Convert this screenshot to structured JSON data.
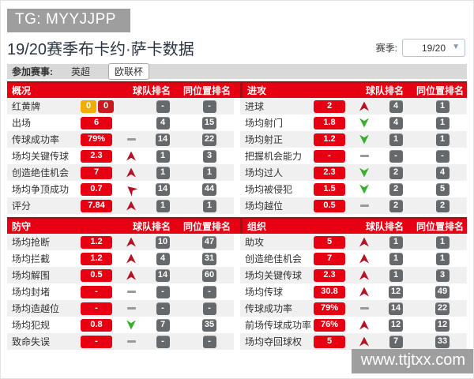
{
  "badge_text": "TG: MYYJJPP",
  "header": {
    "title": "19/20赛季布卡约·萨卡数据",
    "season_label": "赛季:",
    "season_value": "19/20"
  },
  "tabs": {
    "label": "参加赛事:",
    "items": [
      {
        "label": "英超",
        "active": false
      },
      {
        "label": "欧联杯",
        "active": true
      }
    ]
  },
  "columns": {
    "team_rank": "球队排名",
    "pos_rank": "同位置排名"
  },
  "panels": [
    {
      "title": "概况",
      "rows": [
        {
          "label": "红黄牌",
          "cards": {
            "yellow": "0",
            "red": "0"
          },
          "trend": "none",
          "team": "-",
          "pos": "-"
        },
        {
          "label": "出场",
          "value": "6",
          "trend": "none",
          "team": "4",
          "pos": "15"
        },
        {
          "label": "传球成功率",
          "value": "79%",
          "trend": "flat",
          "team": "14",
          "pos": "22"
        },
        {
          "label": "场均关键传球",
          "value": "2.3",
          "trend": "up",
          "team": "1",
          "pos": "3"
        },
        {
          "label": "创造绝佳机会",
          "value": "7",
          "trend": "up",
          "team": "1",
          "pos": "1"
        },
        {
          "label": "场均争顶成功",
          "value": "0.7",
          "trend": "upleft",
          "team": "14",
          "pos": "44"
        },
        {
          "label": "评分",
          "value": "7.84",
          "trend": "up",
          "team": "1",
          "pos": "1"
        }
      ]
    },
    {
      "title": "进攻",
      "rows": [
        {
          "label": "进球",
          "value": "2",
          "trend": "up",
          "team": "4",
          "pos": "1"
        },
        {
          "label": "场均射门",
          "value": "1.8",
          "trend": "down",
          "team": "4",
          "pos": "1"
        },
        {
          "label": "场均射正",
          "value": "1.2",
          "trend": "down",
          "team": "1",
          "pos": "1"
        },
        {
          "label": "把握机会能力",
          "value": "-",
          "trend": "flat",
          "team": "-",
          "pos": "-"
        },
        {
          "label": "场均过人",
          "value": "2.3",
          "trend": "down",
          "team": "2",
          "pos": "4"
        },
        {
          "label": "场均被侵犯",
          "value": "1.5",
          "trend": "down",
          "team": "2",
          "pos": "5"
        },
        {
          "label": "场均越位",
          "value": "0.5",
          "trend": "flat",
          "team": "2",
          "pos": "2"
        }
      ]
    },
    {
      "title": "防守",
      "rows": [
        {
          "label": "场均抢断",
          "value": "1.2",
          "trend": "up",
          "team": "10",
          "pos": "47"
        },
        {
          "label": "场均拦截",
          "value": "1.2",
          "trend": "up",
          "team": "4",
          "pos": "31"
        },
        {
          "label": "场均解围",
          "value": "0.5",
          "trend": "up",
          "team": "14",
          "pos": "60"
        },
        {
          "label": "场均封堵",
          "value": "-",
          "trend": "flat",
          "team": "-",
          "pos": "-"
        },
        {
          "label": "场均造越位",
          "value": "-",
          "trend": "flat",
          "team": "-",
          "pos": "-"
        },
        {
          "label": "场均犯规",
          "value": "0.8",
          "trend": "down",
          "team": "7",
          "pos": "35"
        },
        {
          "label": "致命失误",
          "value": "-",
          "trend": "flat",
          "team": "-",
          "pos": "-"
        }
      ]
    },
    {
      "title": "组织",
      "rows": [
        {
          "label": "助攻",
          "value": "5",
          "trend": "up",
          "team": "1",
          "pos": "1"
        },
        {
          "label": "创造绝佳机会",
          "value": "7",
          "trend": "up",
          "team": "1",
          "pos": "1"
        },
        {
          "label": "场均关键传球",
          "value": "2.3",
          "trend": "up",
          "team": "1",
          "pos": "3"
        },
        {
          "label": "场均传球",
          "value": "30.8",
          "trend": "up",
          "team": "12",
          "pos": "49"
        },
        {
          "label": "传球成功率",
          "value": "79%",
          "trend": "flat",
          "team": "14",
          "pos": "22"
        },
        {
          "label": "前场传球成功率",
          "value": "76%",
          "trend": "up",
          "team": "12",
          "pos": "12"
        },
        {
          "label": "场均夺回球权",
          "value": "5",
          "trend": "up",
          "team": "7",
          "pos": "33"
        }
      ]
    }
  ],
  "watermark": "www.ttjtxx.com",
  "colors": {
    "accent_red": "#e60012",
    "dark_red": "#a50d12",
    "trend_up_red": "#b41324",
    "trend_down_green": "#3cae2d",
    "yellow_card": "#f0ae00",
    "red_card": "#c91a20",
    "rank_badge_gray": "#65696c",
    "watermark_gray": "#9e9e9e"
  }
}
